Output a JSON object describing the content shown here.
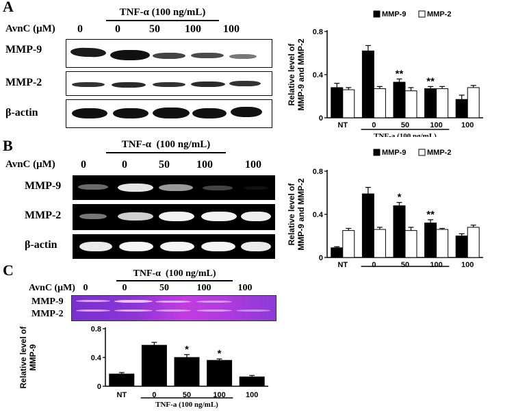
{
  "panels": [
    {
      "letter": "A",
      "treatment_label": "TNF-α (100 ng/mL)",
      "dose_label": "AvnC (μM)",
      "doses": [
        "0",
        "0",
        "50",
        "100",
        "100"
      ],
      "blot_rows": [
        "MMP-9",
        "MMP-2",
        "β-actin"
      ]
    },
    {
      "letter": "B",
      "treatment_label": "TNF-α  (100 ng/mL)",
      "dose_label": "AvnC (μM)",
      "doses": [
        "0",
        "0",
        "50",
        "100",
        "100"
      ],
      "blot_rows": [
        "MMP-9",
        "MMP-2",
        "β-actin"
      ]
    },
    {
      "letter": "C",
      "treatment_label": "TNF-α  (100 ng/mL)",
      "dose_label": "AvnC (μM)",
      "doses": [
        "0",
        "0",
        "50",
        "100",
        "100"
      ],
      "blot_rows": [
        "MMP-9",
        "MMP-2"
      ]
    }
  ],
  "chart_data": [
    {
      "id": "A",
      "type": "bar",
      "categories": [
        "NT",
        "0",
        "50",
        "100",
        "100"
      ],
      "series": [
        {
          "name": "MMP-9",
          "color": "#000000",
          "values": [
            0.28,
            0.62,
            0.33,
            0.27,
            0.17
          ],
          "errors": [
            0.04,
            0.05,
            0.03,
            0.02,
            0.04
          ]
        },
        {
          "name": "MMP-2",
          "color": "#ffffff",
          "values": [
            0.26,
            0.27,
            0.25,
            0.27,
            0.28
          ],
          "errors": [
            0.02,
            0.02,
            0.03,
            0.02,
            0.02
          ]
        }
      ],
      "ylabel_line1": "Relative level of",
      "ylabel_line2": "MMP-9 and MMP-2",
      "ylim": [
        0,
        0.8
      ],
      "yticks": [
        "0",
        "0.4",
        "0.8"
      ],
      "annotations": [
        {
          "category_index": 2,
          "text": "**"
        },
        {
          "category_index": 3,
          "text": "**"
        }
      ],
      "treatment_bar_label": "TNF-a (100 ng/mL)"
    },
    {
      "id": "B",
      "type": "bar",
      "categories": [
        "NT",
        "0",
        "50",
        "100",
        "100"
      ],
      "series": [
        {
          "name": "MMP-9",
          "color": "#000000",
          "values": [
            0.09,
            0.59,
            0.48,
            0.32,
            0.2
          ],
          "errors": [
            0.01,
            0.06,
            0.03,
            0.03,
            0.02
          ]
        },
        {
          "name": "MMP-2",
          "color": "#ffffff",
          "values": [
            0.25,
            0.26,
            0.25,
            0.26,
            0.28
          ],
          "errors": [
            0.02,
            0.02,
            0.03,
            0.01,
            0.02
          ]
        }
      ],
      "ylabel_line1": "Relative level of",
      "ylabel_line2": "MMP-9 and MMP-2",
      "ylim": [
        0,
        0.8
      ],
      "yticks": [
        "0",
        "0.4",
        "0.8"
      ],
      "annotations": [
        {
          "category_index": 2,
          "text": "*"
        },
        {
          "category_index": 3,
          "text": "**"
        }
      ],
      "treatment_bar_label": "TNF-a (100 ng/mL)"
    },
    {
      "id": "C",
      "type": "bar",
      "categories": [
        "NT",
        "0",
        "50",
        "100",
        "100"
      ],
      "series": [
        {
          "name": "MMP-9",
          "color": "#000000",
          "values": [
            0.17,
            0.57,
            0.4,
            0.36,
            0.13
          ],
          "errors": [
            0.02,
            0.04,
            0.04,
            0.02,
            0.02
          ]
        }
      ],
      "ylabel_line1": "Relative level of",
      "ylabel_line2": "MMP-9",
      "ylim": [
        0,
        0.8
      ],
      "yticks": [
        "0",
        "0.4",
        "0.8"
      ],
      "annotations": [
        {
          "category_index": 2,
          "text": "*"
        },
        {
          "category_index": 3,
          "text": "*"
        }
      ],
      "treatment_bar_label": "TNF-a (100 ng/mL)"
    }
  ]
}
